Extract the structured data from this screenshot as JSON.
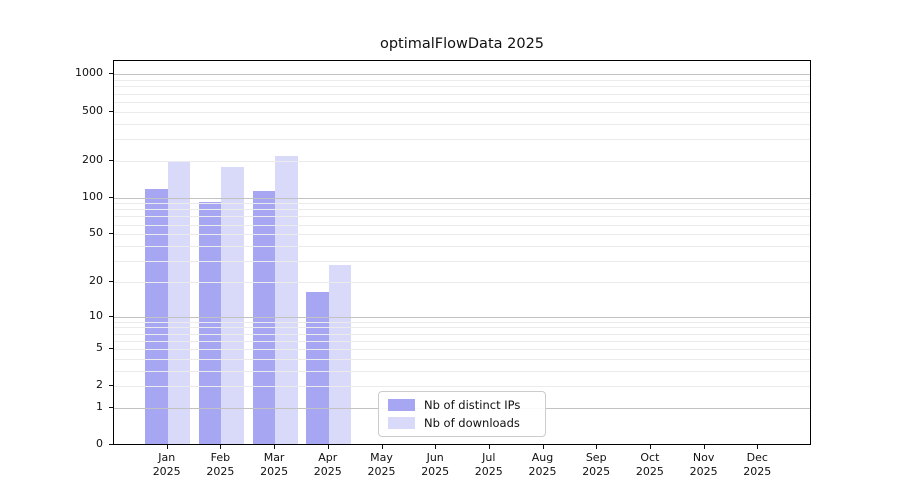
{
  "chart_data": {
    "type": "bar",
    "title": "optimalFlowData 2025",
    "categories": [
      "Jan 2025",
      "Feb 2025",
      "Mar 2025",
      "Apr 2025",
      "May 2025",
      "Jun 2025",
      "Jul 2025",
      "Aug 2025",
      "Sep 2025",
      "Oct 2025",
      "Nov 2025",
      "Dec 2025"
    ],
    "series": [
      {
        "name": "Nb of distinct IPs",
        "color": "#a6a6f3",
        "values": [
          115,
          90,
          110,
          16,
          0,
          0,
          0,
          0,
          0,
          0,
          0,
          0
        ]
      },
      {
        "name": "Nb of downloads",
        "color": "#d9d9f9",
        "values": [
          195,
          172,
          212,
          27,
          0,
          0,
          0,
          0,
          0,
          0,
          0,
          0
        ]
      }
    ],
    "yscale": "log1p",
    "yticks": [
      0,
      1,
      2,
      5,
      10,
      20,
      50,
      100,
      200,
      500,
      1000
    ],
    "ylim": [
      0,
      1260
    ],
    "xlabel": "",
    "ylabel": "",
    "grid": true,
    "grid_minor_values": [
      2,
      3,
      4,
      5,
      6,
      7,
      8,
      9,
      20,
      30,
      40,
      50,
      60,
      70,
      80,
      90,
      200,
      300,
      400,
      500,
      600,
      700,
      800,
      900
    ],
    "grid_major_values": [
      1,
      10,
      100,
      1000
    ],
    "legend_position": "lower-center-inside"
  },
  "colors": {
    "background": "#ffffff",
    "spine": "#000000",
    "text": "#111111",
    "major_grid": "#c2c2c2",
    "minor_grid": "#ebebeb"
  }
}
